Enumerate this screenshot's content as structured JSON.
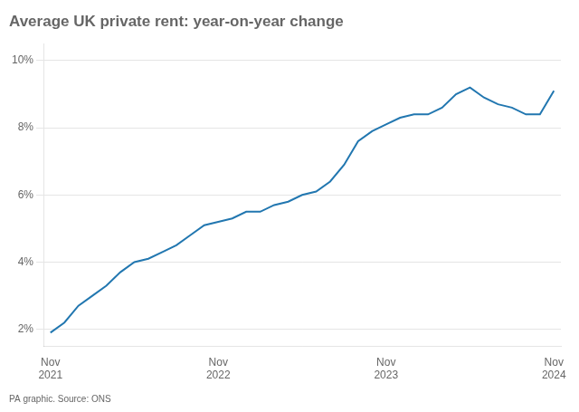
{
  "chart_data": {
    "type": "line",
    "title": "Average UK private rent: year-on-year change",
    "annotations": [
      "PA graphic. Source: ONS"
    ],
    "x": [
      0,
      1,
      2,
      3,
      4,
      5,
      6,
      7,
      8,
      9,
      10,
      11,
      12,
      13,
      14,
      15,
      16,
      17,
      18,
      19,
      20,
      21,
      22,
      23,
      24,
      25,
      26,
      27,
      28,
      29,
      30,
      31,
      32,
      33,
      34,
      35,
      36
    ],
    "values": [
      1.9,
      2.2,
      2.7,
      3.0,
      3.3,
      3.7,
      4.0,
      4.1,
      4.3,
      4.5,
      4.8,
      5.1,
      5.2,
      5.3,
      5.5,
      5.5,
      5.7,
      5.8,
      6.0,
      6.1,
      6.4,
      6.9,
      7.6,
      7.9,
      8.1,
      8.3,
      8.4,
      8.4,
      8.6,
      9.0,
      9.2,
      8.9,
      8.7,
      8.6,
      8.4,
      8.4,
      9.1
    ],
    "color": "#2277b0",
    "xlim": [
      -0.5,
      36.5
    ],
    "xticks": [
      {
        "value": 0,
        "label": "Nov\n2021"
      },
      {
        "value": 12,
        "label": "Nov\n2022"
      },
      {
        "value": 24,
        "label": "Nov\n2023"
      },
      {
        "value": 36,
        "label": "Nov\n2024"
      }
    ],
    "ylim": [
      1.5,
      10.5
    ],
    "yticks": [
      {
        "value": 2,
        "label": "2%"
      },
      {
        "value": 4,
        "label": "4%"
      },
      {
        "value": 6,
        "label": "6%"
      },
      {
        "value": 8,
        "label": "8%"
      },
      {
        "value": 10,
        "label": "10%"
      }
    ],
    "grid": "y"
  }
}
